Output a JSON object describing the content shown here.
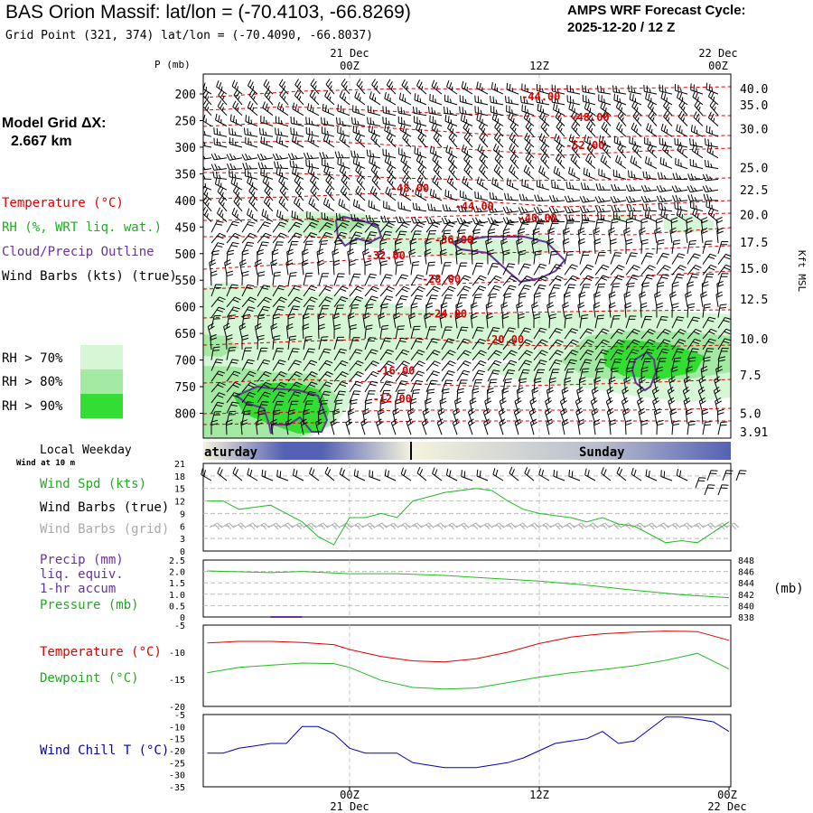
{
  "header": {
    "title": "BAS Orion Massif:  lat/lon = (-70.4103, -66.8269)",
    "grid_point": "Grid Point (321, 374) lat/lon = (-70.4090, -66.8037)",
    "cycle_line1": "AMPS WRF Forecast Cycle:",
    "cycle_line2": "2025-12-20 / 12  Z"
  },
  "left_panel": {
    "model_grid_label": "Model Grid ΔX:",
    "model_grid_value": "2.667 km",
    "temperature_label": "Temperature (°C)",
    "rh_label": "RH (%, WRT liq. wat.)",
    "cloud_label": "Cloud/Precip Outline",
    "wind_label": "Wind Barbs (kts) (true)",
    "rh_legend": [
      "RH > 70%",
      "RH > 80%",
      "RH > 90%"
    ],
    "local_weekday": "Local Weekday",
    "wind_at_10m": "Wind at 10 m",
    "wind_spd_label": "Wind Spd (kts)",
    "wind_barbs_true": "Wind Barbs (true)",
    "wind_barbs_grid": "Wind Barbs (grid)",
    "precip_label_1": "Precip (mm)",
    "precip_label_2": "liq. equiv.",
    "precip_label_3": "1-hr accum",
    "pressure_label": "Pressure (mb)",
    "temp_label": "Temperature (°C)",
    "dewpoint_label": "Dewpoint (°C)",
    "wind_chill_label": "Wind Chill T (°C)"
  },
  "colors": {
    "temperature": "#dd0000",
    "rh": "#22bb22",
    "cloud": "#663399",
    "wind": "#000000",
    "wind_grid": "#aaaaaa",
    "pressure": "#22bb22",
    "precip": "#663399",
    "windchill": "#0000bb",
    "rh70": "#d6f7d6",
    "rh80": "#a3e8a3",
    "rh90": "#33dd33"
  },
  "top_time_axis": {
    "p_label": "P (mb)",
    "ticks": [
      {
        "t": 0,
        "top": "21 Dec",
        "bottom": "00Z"
      },
      {
        "t": 12,
        "top": "",
        "bottom": "12Z"
      },
      {
        "t": 24,
        "top": "22 Dec",
        "bottom": "00Z"
      }
    ]
  },
  "bottom_time_axis": {
    "ticks": [
      {
        "t": 0,
        "top": "00Z",
        "bottom": "21 Dec"
      },
      {
        "t": 12,
        "top": "12Z",
        "bottom": ""
      },
      {
        "t": 24,
        "top": "00Z",
        "bottom": "22 Dec"
      }
    ]
  },
  "weekday_band": {
    "left": "aturday",
    "right": "Sunday"
  },
  "chart_data": [
    {
      "type": "heatmap",
      "title": "Time-height cross-section",
      "x_range_hours": [
        -9,
        24
      ],
      "ylim_mb": [
        200,
        835
      ],
      "pressure_ticks": [
        200,
        250,
        300,
        350,
        400,
        450,
        500,
        550,
        600,
        650,
        700,
        750,
        800
      ],
      "kft_ticks": [
        {
          "label": "40.0",
          "mb": 190
        },
        {
          "label": "35.0",
          "mb": 220
        },
        {
          "label": "30.0",
          "mb": 265
        },
        {
          "label": "25.0",
          "mb": 338
        },
        {
          "label": "22.5",
          "mb": 380
        },
        {
          "label": "20.0",
          "mb": 427
        },
        {
          "label": "17.5",
          "mb": 478
        },
        {
          "label": "15.0",
          "mb": 528
        },
        {
          "label": "12.5",
          "mb": 585
        },
        {
          "label": "10.0",
          "mb": 660
        },
        {
          "label": "7.5",
          "mb": 728
        },
        {
          "label": "5.0",
          "mb": 800
        },
        {
          "label": "3.91",
          "mb": 835
        }
      ],
      "kft_axis_label": "Kft MSL",
      "temperature_contours": [
        {
          "label": "-44.00",
          "t": 12.1,
          "mb": 205
        },
        {
          "label": "-48.00",
          "t": 15.2,
          "mb": 244
        },
        {
          "label": "-52.00",
          "t": 14.9,
          "mb": 297
        },
        {
          "label": "-48.00",
          "t": 3.8,
          "mb": 377
        },
        {
          "label": "-44.00",
          "t": 7.9,
          "mb": 411
        },
        {
          "label": "-40.00",
          "t": 11.9,
          "mb": 433
        },
        {
          "label": "-36.00",
          "t": 6.6,
          "mb": 474
        },
        {
          "label": "-32.00",
          "t": 2.3,
          "mb": 504
        },
        {
          "label": "-28.00",
          "t": 5.8,
          "mb": 548
        },
        {
          "label": "-24.00",
          "t": 6.2,
          "mb": 613
        },
        {
          "label": "-20.00",
          "t": 9.8,
          "mb": 662
        },
        {
          "label": "-16.00",
          "t": 2.9,
          "mb": 720
        },
        {
          "label": "-12.00",
          "t": 2.7,
          "mb": 773
        }
      ]
    },
    {
      "type": "line",
      "title": "Wind speed at 10 m",
      "ylabel": "Wind Spd (kts)",
      "ylim": [
        0,
        21
      ],
      "yticks": [
        0,
        3,
        6,
        9,
        12,
        15,
        18,
        21
      ],
      "x": [
        -9,
        -8,
        -7,
        -6,
        -5,
        -4,
        -3,
        -2,
        -1,
        0,
        1,
        2,
        3,
        4,
        5,
        6,
        7,
        8,
        9,
        10,
        11,
        12,
        13,
        14,
        15,
        16,
        17,
        18,
        19,
        20,
        21,
        22,
        23,
        24
      ],
      "values": [
        12,
        12,
        10,
        10.5,
        11,
        9,
        7,
        3.5,
        1.5,
        8,
        8,
        9,
        8,
        12,
        13,
        14,
        14.5,
        15,
        14.5,
        12,
        10,
        9,
        8.5,
        8,
        7,
        8,
        6.5,
        6,
        4,
        2,
        2.5,
        2,
        4.5,
        7
      ]
    },
    {
      "type": "line",
      "title": "Pressure and precipitation",
      "series": [
        {
          "name": "Pressure (mb)",
          "axis": "right",
          "ylim": [
            838,
            848
          ],
          "x": [
            -9,
            -5,
            -3,
            0,
            3,
            6,
            9,
            12,
            15,
            18,
            21,
            24
          ],
          "values": [
            846.1,
            845.8,
            846.0,
            845.6,
            845.6,
            845.3,
            844.8,
            844.3,
            843.6,
            842.7,
            841.9,
            841.4
          ]
        },
        {
          "name": "Precip (mm)",
          "axis": "left",
          "ylim": [
            0,
            2.5
          ],
          "x": [
            -5,
            -3
          ],
          "values": [
            0,
            0
          ]
        }
      ],
      "yticks_left": [
        "0",
        "0.5",
        "1.0",
        "1.5",
        "2.0",
        "2.5"
      ],
      "yticks_right": [
        "838",
        "840",
        "842",
        "844",
        "846",
        "848"
      ],
      "right_axis_label": "(mb)"
    },
    {
      "type": "line",
      "title": "Temperature and Dewpoint",
      "ylim": [
        -20,
        -5
      ],
      "yticks": [
        -5,
        -10,
        -15,
        -20
      ],
      "series": [
        {
          "name": "Temperature (°C)",
          "x": [
            -9,
            -7,
            -5,
            -3,
            -1,
            0,
            2,
            4,
            6,
            8,
            10,
            12,
            14,
            16,
            18,
            20,
            22,
            24
          ],
          "values": [
            -8.3,
            -8.0,
            -8.0,
            -8.2,
            -8.6,
            -9.5,
            -10.8,
            -11.6,
            -11.8,
            -11.2,
            -10.0,
            -8.4,
            -7.2,
            -6.6,
            -6.3,
            -6.1,
            -6.2,
            -7.8
          ]
        },
        {
          "name": "Dewpoint (°C)",
          "x": [
            -9,
            -7,
            -5,
            -3,
            -1,
            0,
            2,
            4,
            6,
            8,
            10,
            12,
            14,
            16,
            18,
            20,
            22,
            24
          ],
          "values": [
            -13.8,
            -12.8,
            -12.4,
            -12.0,
            -12.1,
            -12.8,
            -15.2,
            -16.5,
            -16.8,
            -16.6,
            -15.6,
            -14.6,
            -13.8,
            -13.2,
            -12.5,
            -11.5,
            -10.2,
            -13.1
          ]
        }
      ]
    },
    {
      "type": "line",
      "title": "Wind Chill Temperature",
      "ylim": [
        -35,
        -5
      ],
      "yticks": [
        -5,
        -10,
        -15,
        -20,
        -25,
        -30,
        -35
      ],
      "x": [
        -9,
        -8,
        -7,
        -6,
        -5,
        -4,
        -3,
        -2,
        -1,
        0,
        1,
        2,
        3,
        4,
        5,
        6,
        7,
        8,
        9,
        10,
        11,
        12,
        13,
        14,
        15,
        16,
        17,
        18,
        19,
        20,
        21,
        22,
        23,
        24
      ],
      "values": [
        -21,
        -21,
        -19,
        -18,
        -17,
        -17,
        -10,
        -10,
        -13,
        -19,
        -21,
        -21,
        -21,
        -25,
        -26,
        -27,
        -27,
        -27,
        -26,
        -25,
        -23,
        -20,
        -17,
        -16,
        -15,
        -12,
        -17,
        -16,
        -11,
        -6,
        -6,
        -7,
        -8,
        -12
      ]
    }
  ]
}
